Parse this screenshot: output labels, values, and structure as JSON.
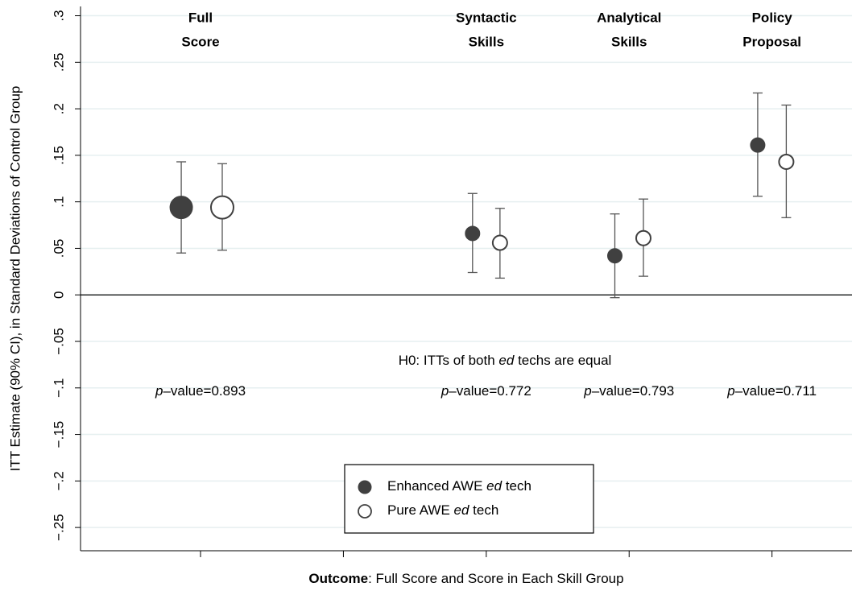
{
  "chart_data": {
    "type": "errorbar",
    "y_label": "ITT Estimate (90% CI), in Standard Deviations of Control Group",
    "x_label": [
      "Outcome",
      ": Full Score and Score in Each Skill Group"
    ],
    "categories": [
      [
        "Full",
        "Score"
      ],
      null,
      [
        "Syntactic",
        "Skills"
      ],
      [
        "Analytical",
        "Skills"
      ],
      [
        "Policy",
        "Proposal"
      ]
    ],
    "annotation": "H0: ITTs of both ed techs are equal",
    "p_values": [
      "p–value=0.893",
      null,
      "p–value=0.772",
      "p–value=0.793",
      "p–value=0.711"
    ],
    "xlim": [
      0.16,
      5.56
    ],
    "xticks": [
      1,
      2,
      3,
      4,
      5
    ],
    "ylim": [
      -0.275,
      0.31
    ],
    "yticks": [
      {
        "value": 0.3,
        "label": ".3"
      },
      {
        "value": 0.25,
        "label": ".25"
      },
      {
        "value": 0.2,
        "label": ".2"
      },
      {
        "value": 0.15,
        "label": ".15"
      },
      {
        "value": 0.1,
        "label": ".1"
      },
      {
        "value": 0.05,
        "label": ".05"
      },
      0,
      {
        "value": -0.05,
        "label": "−.05"
      },
      {
        "value": -0.1,
        "label": "−.1"
      },
      {
        "value": -0.15,
        "label": "−.15"
      },
      {
        "value": -0.2,
        "label": "−.2"
      },
      {
        "value": -0.25,
        "label": "−.25"
      }
    ],
    "grid": true,
    "legend": "lower center",
    "series": [
      {
        "name": "Enhanced AWE ed tech",
        "color": "#404040",
        "filled": true,
        "x": [
          0.865,
          2.904,
          3.9,
          4.9
        ],
        "values": [
          0.094,
          0.066,
          0.042,
          0.161
        ],
        "lower": [
          0.045,
          0.024,
          -0.003,
          0.106
        ],
        "upper": [
          0.143,
          0.109,
          0.087,
          0.217
        ]
      },
      {
        "name": "Pure AWE ed tech",
        "color": "#404040",
        "filled": false,
        "x": [
          1.152,
          3.096,
          4.1,
          5.1
        ],
        "values": [
          0.094,
          0.056,
          0.061,
          0.143
        ],
        "lower": [
          0.048,
          0.018,
          0.02,
          0.083
        ],
        "upper": [
          0.141,
          0.093,
          0.103,
          0.204
        ]
      }
    ]
  }
}
